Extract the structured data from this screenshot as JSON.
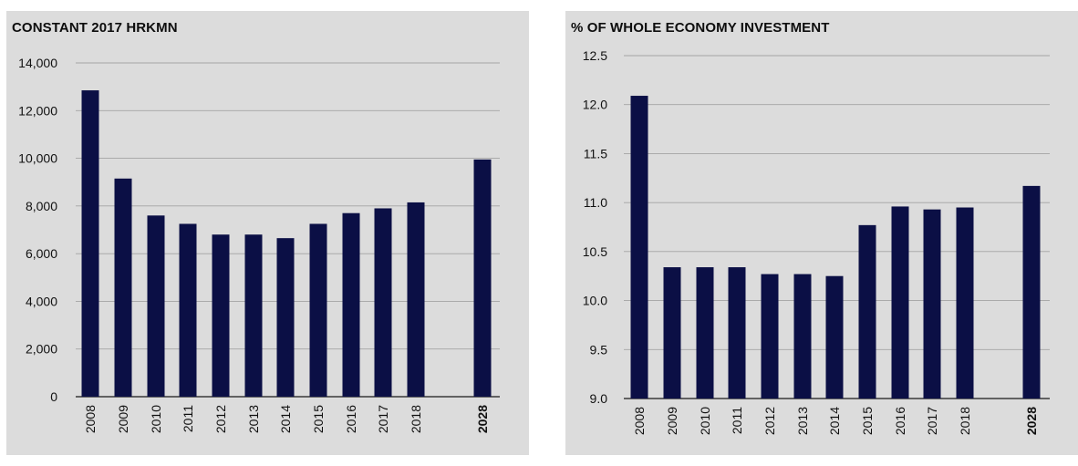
{
  "chart_data": [
    {
      "type": "bar",
      "title": "CONSTANT 2017 HRKMN",
      "categories": [
        "2008",
        "2009",
        "2010",
        "2011",
        "2012",
        "2013",
        "2014",
        "2015",
        "2016",
        "2017",
        "2018",
        "2028"
      ],
      "values": [
        12850,
        9150,
        7600,
        7250,
        6800,
        6800,
        6650,
        7250,
        7700,
        7900,
        8150,
        9950
      ],
      "ylim": [
        0,
        14000
      ],
      "yticks": [
        0,
        2000,
        4000,
        6000,
        8000,
        10000,
        12000,
        14000
      ],
      "ytick_labels": [
        "0",
        "2,000",
        "4,000",
        "6,000",
        "8,000",
        "10,000",
        "12,000",
        "14,000"
      ],
      "grid": true,
      "bar_color": "#0b0f45",
      "bold_categories": [
        "2028"
      ]
    },
    {
      "type": "bar",
      "title": "% OF WHOLE ECONOMY INVESTMENT",
      "categories": [
        "2008",
        "2009",
        "2010",
        "2011",
        "2012",
        "2013",
        "2014",
        "2015",
        "2016",
        "2017",
        "2018",
        "2028"
      ],
      "values": [
        12.09,
        10.34,
        10.34,
        10.34,
        10.27,
        10.27,
        10.25,
        10.77,
        10.96,
        10.93,
        10.95,
        11.17
      ],
      "ylim": [
        9.0,
        12.5
      ],
      "yticks": [
        9.0,
        9.5,
        10.0,
        10.5,
        11.0,
        11.5,
        12.0,
        12.5
      ],
      "ytick_labels": [
        "9.0",
        "9.5",
        "10.0",
        "10.5",
        "11.0",
        "11.5",
        "12.0",
        "12.5"
      ],
      "grid": true,
      "bar_color": "#0b0f45",
      "bold_categories": [
        "2028"
      ]
    }
  ]
}
